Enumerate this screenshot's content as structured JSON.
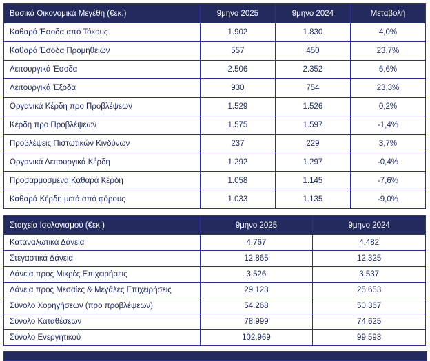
{
  "colors": {
    "header_bg": "#222a5e",
    "border": "#2e3192",
    "body_text": "#1f2a5c",
    "header_text": "#ffffff"
  },
  "table1": {
    "title": "Βασικά Οικονομικά Μεγέθη (€εκ.)",
    "columns": [
      "9μηνο 2025",
      "9μηνο 2024",
      "Μεταβολή"
    ],
    "rows": [
      {
        "label": "Καθαρά Έσοδα από Τόκους",
        "y2025": "1.902",
        "y2024": "1.830",
        "change": "4,0%"
      },
      {
        "label": "Καθαρά Έσοδα Προμηθειών",
        "y2025": "557",
        "y2024": "450",
        "change": "23,7%"
      },
      {
        "label": "Λειτουργικά Έσοδα",
        "y2025": "2.506",
        "y2024": "2.352",
        "change": "6,6%"
      },
      {
        "label": "Λειτουργικά Έξοδα",
        "y2025": "930",
        "y2024": "754",
        "change": "23,3%"
      },
      {
        "label": "Οργανικά Κέρδη προ Προβλέψεων",
        "y2025": "1.529",
        "y2024": "1.526",
        "change": "0,2%"
      },
      {
        "label": "Κέρδη προ Προβλέψεων",
        "y2025": "1.575",
        "y2024": "1.597",
        "change": "-1,4%"
      },
      {
        "label": "Προβλέψεις Πιστωτικών Κινδύνων",
        "y2025": "237",
        "y2024": "229",
        "change": "3,7%"
      },
      {
        "label": "Οργανικά Λειτουργικά Κέρδη",
        "y2025": "1.292",
        "y2024": "1.297",
        "change": "-0,4%"
      },
      {
        "label": "Προσαρμοσμένα Καθαρά Κέρδη",
        "y2025": "1.058",
        "y2024": "1.145",
        "change": "-7,6%"
      },
      {
        "label": "Καθαρά Κέρδη μετά από φόρους",
        "y2025": "1.033",
        "y2024": "1.135",
        "change": "-9,0%"
      }
    ]
  },
  "table2": {
    "title": "Στοιχεία Ισολογισμού (€εκ.)",
    "columns": [
      "9μηνο 2025",
      "9μηνο 2024"
    ],
    "rows": [
      {
        "label": "Καταναλωτικά Δάνεια",
        "y2025": "4.767",
        "y2024": "4.482"
      },
      {
        "label": "Στεγαστικά Δάνεια",
        "y2025": "12.865",
        "y2024": "12.325"
      },
      {
        "label": "Δάνεια προς Μικρές Επιχειρήσεις",
        "y2025": "3.526",
        "y2024": "3.537"
      },
      {
        "label": "Δάνεια προς Μεσαίες & Μεγάλες Επιχειρήσεις",
        "y2025": "29.123",
        "y2024": "25.653"
      },
      {
        "label": "Σύνολο Χορηγήσεων (προ προβλέψεων)",
        "y2025": "54.268",
        "y2024": "50.367"
      },
      {
        "label": "Σύνολο Καταθέσεων",
        "y2025": "78.999",
        "y2024": "74.625"
      },
      {
        "label": "Σύνολο Ενεργητικού",
        "y2025": "102.969",
        "y2024": "99.593"
      }
    ]
  }
}
